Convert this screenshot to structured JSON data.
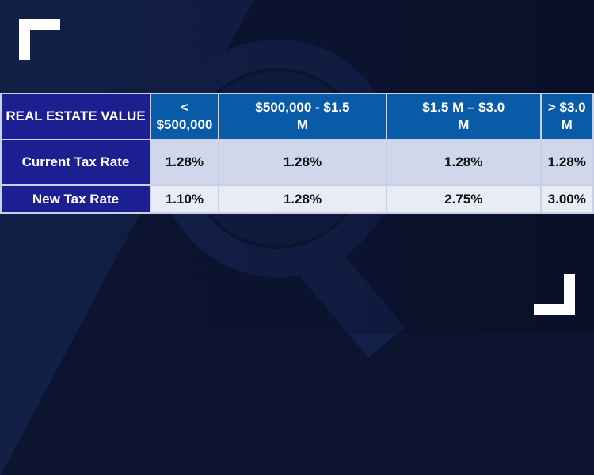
{
  "table": {
    "header": [
      "REAL ESTATE VALUE",
      "< $500,000",
      "$500,000 - $1.5 M",
      "$1.5 M – $3.0 M",
      "> $3.0 M"
    ],
    "rows": [
      {
        "label": "Current Tax Rate",
        "values": [
          "1.28%",
          "1.28%",
          "1.28%",
          "1.28%"
        ]
      },
      {
        "label": "New Tax Rate",
        "values": [
          "1.10%",
          "1.28%",
          "2.75%",
          "3.00%"
        ]
      }
    ]
  },
  "colors": {
    "background": "#0c1430",
    "header": "#0a5ba7",
    "label_cell": "#1b1f90",
    "row_current": "#d1d7eb",
    "row_new": "#e9ebf5"
  }
}
